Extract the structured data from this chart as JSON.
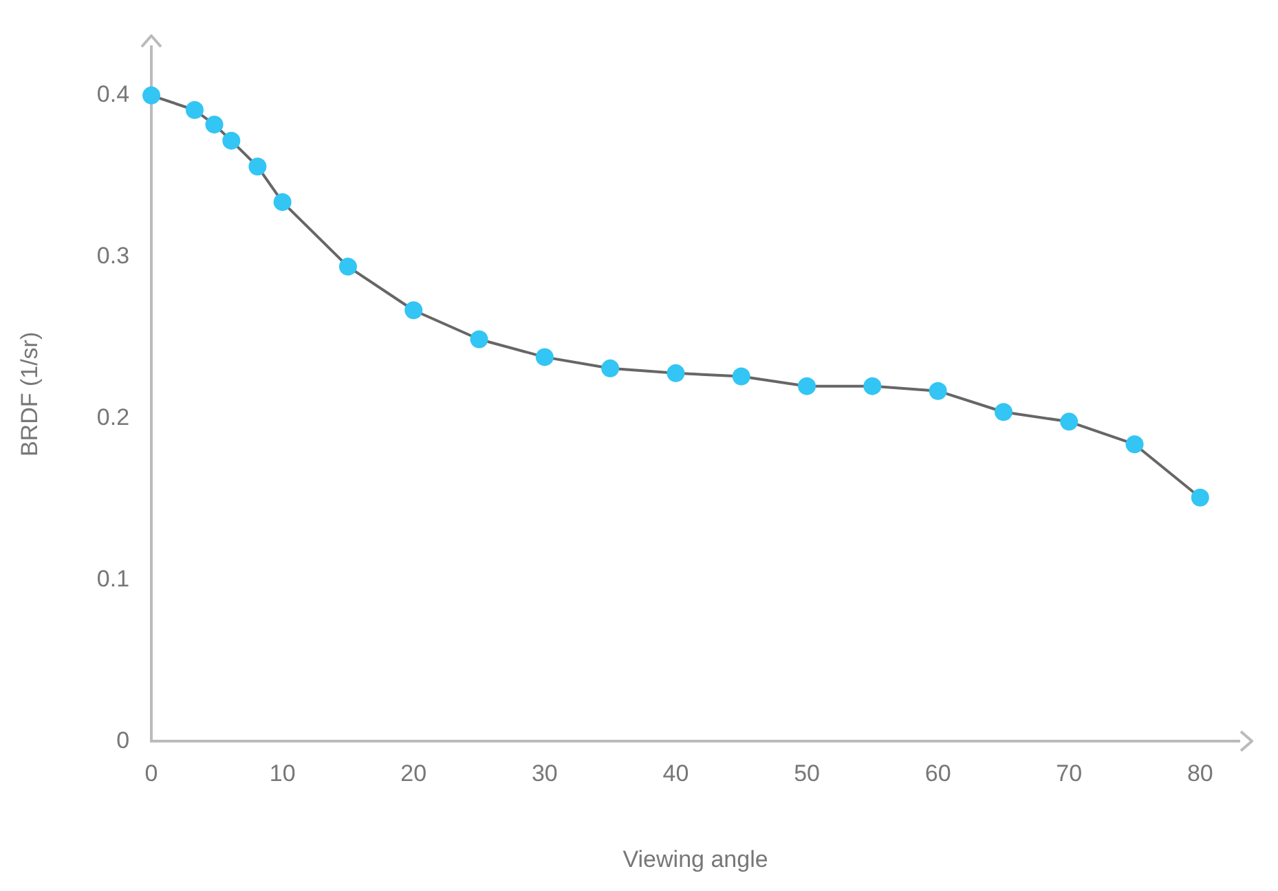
{
  "chart_data": {
    "type": "line",
    "xlabel": "Viewing angle",
    "ylabel": "BRDF (1/sr)",
    "series": [
      {
        "color": "#666666",
        "x": [
          0,
          3.3,
          4.8,
          6.1,
          8.1,
          10,
          15,
          20,
          25,
          30,
          35,
          40,
          45,
          50,
          55,
          60,
          65,
          70,
          75,
          80
        ],
        "values": [
          0.4,
          0.391,
          0.382,
          0.372,
          0.356,
          0.334,
          0.294,
          0.267,
          0.249,
          0.238,
          0.231,
          0.228,
          0.226,
          0.22,
          0.22,
          0.217,
          0.204,
          0.198,
          0.184,
          0.151
        ],
        "colors": [
          "#33c5f3",
          "#33c5f3",
          "#33c5f3",
          "#33c5f3",
          "#33c5f3",
          "#33c5f3",
          "#33c5f3",
          "#33c5f3",
          "#33c5f3",
          "#33c5f3",
          "#33c5f3",
          "#33c5f3",
          "#33c5f3",
          "#33c5f3",
          "#33c5f3",
          "#33c5f3",
          "#33c5f3",
          "#33c5f3",
          "#33c5f3",
          "#33c5f3"
        ]
      }
    ],
    "marker": "circle",
    "xlim": [
      0,
      83
    ],
    "ylim": [
      0,
      0.43
    ],
    "xticks": [
      0,
      10,
      20,
      30,
      40,
      50,
      60,
      70,
      80
    ],
    "yticks": [
      0,
      0.1,
      0.2,
      0.3,
      0.4
    ],
    "grid": false,
    "legend": false
  }
}
